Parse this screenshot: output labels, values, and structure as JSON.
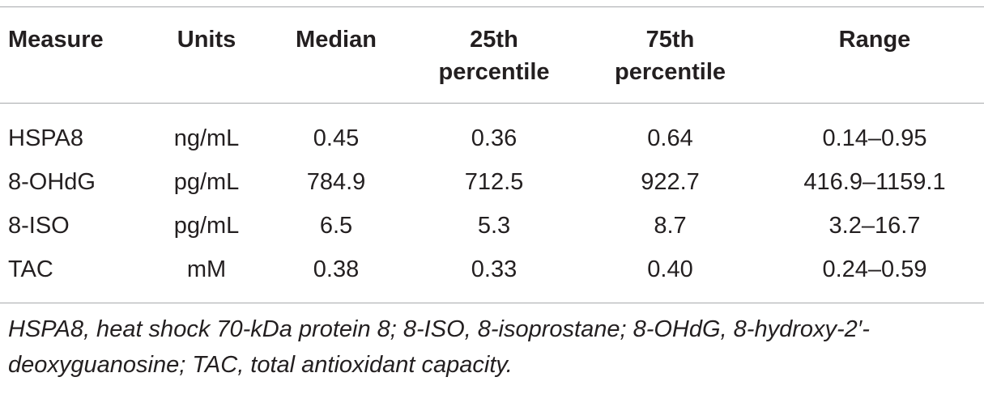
{
  "table": {
    "headers": [
      "Measure",
      "Units",
      "Median",
      "25th percentile",
      "75th percentile",
      "Range"
    ],
    "header_lines": [
      [
        "Measure"
      ],
      [
        "Units"
      ],
      [
        "Median"
      ],
      [
        "25th",
        "percentile"
      ],
      [
        "75th",
        "percentile"
      ],
      [
        "Range"
      ]
    ],
    "rows": [
      [
        "HSPA8",
        "ng/mL",
        "0.45",
        "0.36",
        "0.64",
        "0.14–0.95"
      ],
      [
        "8-OHdG",
        "pg/mL",
        "784.9",
        "712.5",
        "922.7",
        "416.9–1159.1"
      ],
      [
        "8-ISO",
        "pg/mL",
        "6.5",
        "5.3",
        "8.7",
        "3.2–16.7"
      ],
      [
        "TAC",
        "mM",
        "0.38",
        "0.33",
        "0.40",
        "0.24–0.59"
      ]
    ],
    "footnote": "HSPA8, heat shock 70-kDa protein 8; 8-ISO, 8-isoprostane; 8-OHdG, 8-hydroxy-2′-deoxyguanosine; TAC, total antioxidant capacity."
  },
  "colors": {
    "text": "#231f20",
    "rule": "#a7a9ac",
    "background": "#ffffff"
  }
}
